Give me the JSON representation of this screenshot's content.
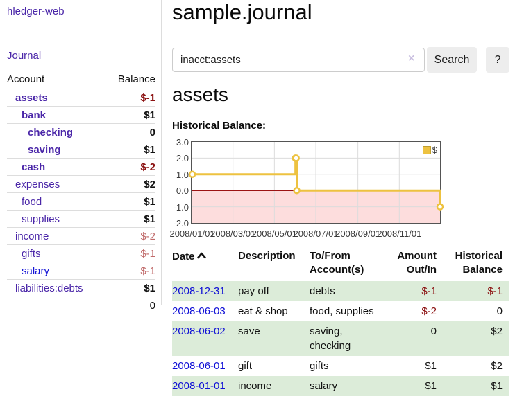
{
  "brand": {
    "label": "hledger-web"
  },
  "nav": {
    "journal": "Journal"
  },
  "colors": {
    "accent_purple": "#4a26a8",
    "link_blue": "#0f0fd6",
    "negative_strong": "#8b1111",
    "negative_soft": "#c06a6a",
    "row_stripe_green": "#dcecd9",
    "series_gold": "#EDC240"
  },
  "sidebar": {
    "header": {
      "account": "Account",
      "balance": "Balance"
    },
    "accounts": [
      {
        "name": "assets",
        "balance": "$-1"
      },
      {
        "name": "bank",
        "balance": "$1"
      },
      {
        "name": "checking",
        "balance": "0"
      },
      {
        "name": "saving",
        "balance": "$1"
      },
      {
        "name": "cash",
        "balance": "$-2"
      },
      {
        "name": "expenses",
        "balance": "$2"
      },
      {
        "name": "food",
        "balance": "$1"
      },
      {
        "name": "supplies",
        "balance": "$1"
      },
      {
        "name": "income",
        "balance": "$-2"
      },
      {
        "name": "gifts",
        "balance": "$-1"
      },
      {
        "name": "salary",
        "balance": "$-1"
      },
      {
        "name": "liabilities:debts",
        "balance": "$1"
      }
    ],
    "total": "0"
  },
  "main": {
    "title": "sample.journal",
    "search": {
      "value": "inacct:assets",
      "clear_icon": "×",
      "search_button": "Search",
      "help_button": "?"
    },
    "account_title": "assets",
    "chart_heading": "Historical Balance:"
  },
  "chart_data": {
    "type": "line",
    "step": true,
    "title": "Historical Balance of assets",
    "series": [
      {
        "name": "$",
        "color": "#EDC240",
        "points": [
          [
            "2008-01-01",
            1.0
          ],
          [
            "2008-06-01",
            2.0
          ],
          [
            "2008-06-02",
            2.0
          ],
          [
            "2008-06-03",
            0.0
          ],
          [
            "2008-12-31",
            -1.0
          ]
        ]
      }
    ],
    "xlim": [
      "2008-01-01",
      "2008-12-31"
    ],
    "ylim": [
      -2.0,
      3.0
    ],
    "yticks": [
      3.0,
      2.0,
      1.0,
      0.0,
      -1.0,
      -2.0
    ],
    "xticks": [
      "2008/01/01",
      "2008/03/01",
      "2008/05/01",
      "2008/07/01",
      "2008/09/01",
      "2008/11/01"
    ],
    "grid": true,
    "grid_color": "#dcdcdc",
    "zero_line_color": "#9c1313",
    "negative_region_color": "#fddddd",
    "legend_position": "top-right"
  },
  "register": {
    "header": {
      "date": "Date",
      "sort_icon": "chevron-up-icon",
      "description": "Description",
      "account_line1": "To/From",
      "account_line2": "Account(s)",
      "amount_line1": "Amount",
      "amount_line2": "Out/In",
      "balance_line1": "Historical",
      "balance_line2": "Balance"
    },
    "rows": [
      {
        "date": "2008-12-31",
        "description": "pay off",
        "accounts": "debts",
        "amount": "$-1",
        "balance": "$-1"
      },
      {
        "date": "2008-06-03",
        "description": "eat & shop",
        "accounts": "food, supplies",
        "amount": "$-2",
        "balance": "0"
      },
      {
        "date": "2008-06-02",
        "description": "save",
        "accounts": "saving, checking",
        "amount": "0",
        "balance": "$2"
      },
      {
        "date": "2008-06-01",
        "description": "gift",
        "accounts": "gifts",
        "amount": "$1",
        "balance": "$2"
      },
      {
        "date": "2008-01-01",
        "description": "income",
        "accounts": "salary",
        "amount": "$1",
        "balance": "$1"
      }
    ]
  }
}
